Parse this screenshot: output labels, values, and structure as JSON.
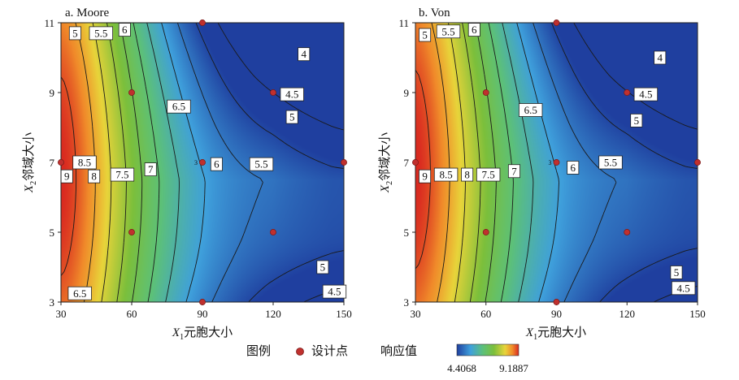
{
  "chart_data": [
    {
      "type": "heatmap",
      "title": "a. Moore",
      "xlabel_var": "X",
      "xlabel_sub": "1",
      "xlabel_text": "元胞大小",
      "ylabel_var": "X",
      "ylabel_sub": "2",
      "ylabel_text": "邻域大小",
      "xticks": [
        "30",
        "60",
        "90",
        "120",
        "150"
      ],
      "yticks": [
        "3",
        "5",
        "7",
        "9",
        "11"
      ],
      "xlim": [
        30,
        150
      ],
      "ylim": [
        3,
        11
      ],
      "design_points": [
        {
          "x": 30,
          "y": 7
        },
        {
          "x": 60,
          "y": 9
        },
        {
          "x": 60,
          "y": 5
        },
        {
          "x": 90,
          "y": 11
        },
        {
          "x": 90,
          "y": 7
        },
        {
          "x": 90,
          "y": 3
        },
        {
          "x": 120,
          "y": 9
        },
        {
          "x": 120,
          "y": 5
        },
        {
          "x": 150,
          "y": 7
        }
      ],
      "center_point_label": "3",
      "contour_labels": [
        {
          "text": "5",
          "x": 36,
          "y": 10.7
        },
        {
          "text": "5.5",
          "x": 47,
          "y": 10.7
        },
        {
          "text": "6",
          "x": 57,
          "y": 10.8
        },
        {
          "text": "4",
          "x": 133,
          "y": 10.1
        },
        {
          "text": "4.5",
          "x": 128,
          "y": 8.95
        },
        {
          "text": "6.5",
          "x": 80,
          "y": 8.6
        },
        {
          "text": "5",
          "x": 128,
          "y": 8.3
        },
        {
          "text": "8.5",
          "x": 40,
          "y": 7
        },
        {
          "text": "6",
          "x": 96,
          "y": 6.95
        },
        {
          "text": "5.5",
          "x": 115,
          "y": 6.95
        },
        {
          "text": "9",
          "x": 32.5,
          "y": 6.6
        },
        {
          "text": "8",
          "x": 44,
          "y": 6.6
        },
        {
          "text": "7.5",
          "x": 56,
          "y": 6.65
        },
        {
          "text": "7",
          "x": 68,
          "y": 6.8
        },
        {
          "text": "5",
          "x": 141,
          "y": 4.0
        },
        {
          "text": "4.5",
          "x": 146,
          "y": 3.3
        },
        {
          "text": "6.5",
          "x": 38,
          "y": 3.25
        }
      ]
    },
    {
      "type": "heatmap",
      "title": "b. Von",
      "xlabel_var": "X",
      "xlabel_sub": "1",
      "xlabel_text": "元胞大小",
      "ylabel_var": "X",
      "ylabel_sub": "2",
      "ylabel_text": "邻域大小",
      "xticks": [
        "30",
        "60",
        "90",
        "120",
        "150"
      ],
      "yticks": [
        "3",
        "5",
        "7",
        "9",
        "11"
      ],
      "xlim": [
        30,
        150
      ],
      "ylim": [
        3,
        11
      ],
      "design_points": [
        {
          "x": 30,
          "y": 7
        },
        {
          "x": 60,
          "y": 9
        },
        {
          "x": 60,
          "y": 5
        },
        {
          "x": 90,
          "y": 11
        },
        {
          "x": 90,
          "y": 7
        },
        {
          "x": 90,
          "y": 3
        },
        {
          "x": 120,
          "y": 9
        },
        {
          "x": 120,
          "y": 5
        },
        {
          "x": 150,
          "y": 7
        }
      ],
      "center_point_label": "3",
      "contour_labels": [
        {
          "text": "5",
          "x": 34,
          "y": 10.65
        },
        {
          "text": "5.5",
          "x": 44,
          "y": 10.75
        },
        {
          "text": "6",
          "x": 55,
          "y": 10.8
        },
        {
          "text": "4",
          "x": 134,
          "y": 10.0
        },
        {
          "text": "4.5",
          "x": 128,
          "y": 8.95
        },
        {
          "text": "6.5",
          "x": 79,
          "y": 8.5
        },
        {
          "text": "5",
          "x": 124,
          "y": 8.2
        },
        {
          "text": "5.5",
          "x": 113,
          "y": 7.0
        },
        {
          "text": "6",
          "x": 97,
          "y": 6.85
        },
        {
          "text": "9",
          "x": 34,
          "y": 6.6
        },
        {
          "text": "8.5",
          "x": 43,
          "y": 6.65
        },
        {
          "text": "8",
          "x": 52,
          "y": 6.65
        },
        {
          "text": "7.5",
          "x": 61,
          "y": 6.65
        },
        {
          "text": "7",
          "x": 72,
          "y": 6.75
        },
        {
          "text": "5",
          "x": 141,
          "y": 3.85
        },
        {
          "text": "4.5",
          "x": 144,
          "y": 3.4
        }
      ]
    }
  ],
  "legend": {
    "title": "图例",
    "point_label": "设计点",
    "colorbar_title": "响应值",
    "min": 4.4068,
    "max": 9.1887,
    "min_label": "4.4068",
    "max_label": "9.1887",
    "point_color": "#c0302e"
  }
}
